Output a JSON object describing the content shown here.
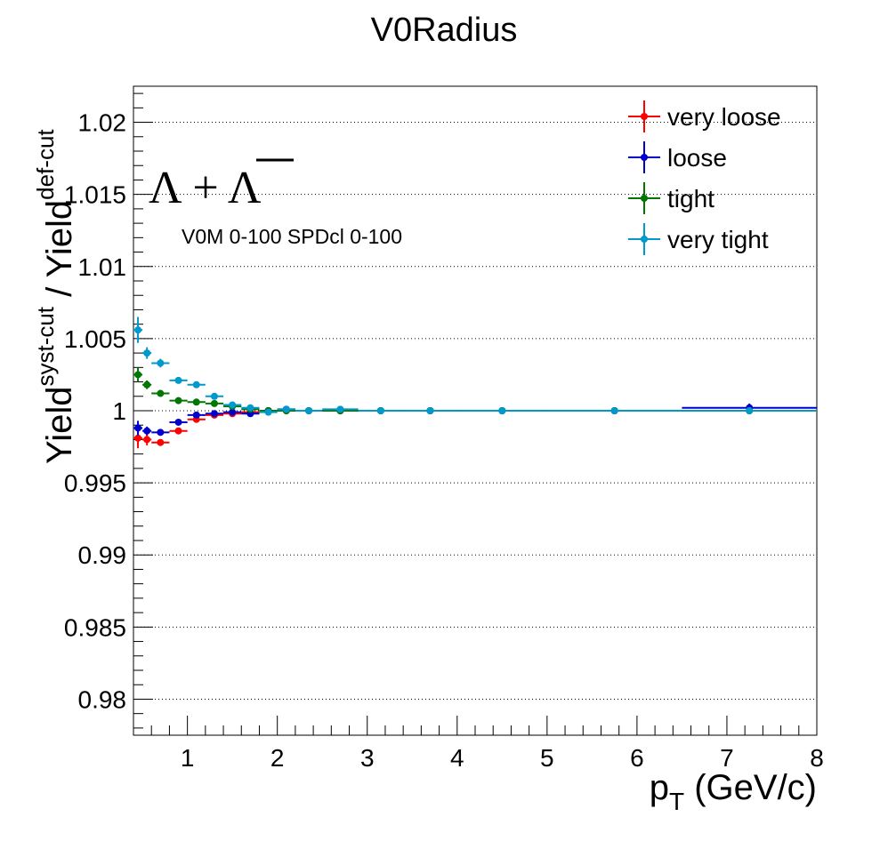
{
  "chart_data": {
    "type": "scatter",
    "title": "V0Radius",
    "xlabel": {
      "main": "p",
      "sub": "T",
      "unit": " (GeV/c)"
    },
    "ylabel": {
      "a": "Yield",
      "a_sup": "syst-cut",
      "sep": " / ",
      "b": "Yield",
      "b_sup": "def-cut"
    },
    "annotation_particle": {
      "part1": "Λ + ",
      "part2": "Λ"
    },
    "annotation_centrality": "V0M 0-100 SPDcl 0-100",
    "xlim": [
      0.4,
      8.0
    ],
    "ylim": [
      0.9775,
      1.0225
    ],
    "xticks": [
      1,
      2,
      3,
      4,
      5,
      6,
      7,
      8
    ],
    "xtick_labels": [
      "1",
      "2",
      "3",
      "4",
      "5",
      "6",
      "7",
      "8"
    ],
    "yticks": [
      0.98,
      0.985,
      0.99,
      0.995,
      1.0,
      1.005,
      1.01,
      1.015,
      1.02
    ],
    "ytick_labels": [
      "0.98",
      "0.985",
      "0.99",
      "0.995",
      "1",
      "1.005",
      "1.01",
      "1.015",
      "1.02"
    ],
    "grid": "horizontal dotted",
    "legend_position": "top-right",
    "bin_edges": [
      0.4,
      0.5,
      0.6,
      0.8,
      1.0,
      1.2,
      1.4,
      1.6,
      1.8,
      2.0,
      2.2,
      2.5,
      2.9,
      3.4,
      4.0,
      5.0,
      6.5,
      8.0
    ],
    "x": [
      0.45,
      0.55,
      0.7,
      0.9,
      1.1,
      1.3,
      1.5,
      1.7,
      1.9,
      2.1,
      2.35,
      2.7,
      3.15,
      3.7,
      4.5,
      5.75,
      7.25
    ],
    "series": [
      {
        "name": "very loose",
        "color": "#ff0000",
        "values": [
          0.9981,
          0.998,
          0.9978,
          0.9986,
          0.9994,
          0.9997,
          0.9998,
          0.9999,
          1.0,
          1.0,
          1.0,
          1.0,
          1.0,
          1.0,
          1.0,
          1.0,
          1.0
        ],
        "errors": [
          0.0007,
          0.0004,
          0.0002,
          0.0002,
          0.0001,
          0.0001,
          0.0001,
          0.0001,
          0.0001,
          0.0001,
          0.0001,
          0.0001,
          0.0001,
          0.0001,
          0.0001,
          0.0001,
          0.0001
        ]
      },
      {
        "name": "loose",
        "color": "#0000cc",
        "values": [
          0.9988,
          0.9986,
          0.9985,
          0.9992,
          0.9997,
          0.9998,
          0.9999,
          0.9998,
          1.0,
          1.0001,
          1.0,
          1.0,
          1.0,
          1.0,
          1.0,
          1.0,
          1.0002
        ],
        "errors": [
          0.0005,
          0.0003,
          0.0002,
          0.0002,
          0.0001,
          0.0001,
          0.0001,
          0.0001,
          0.0001,
          0.0001,
          0.0001,
          0.0001,
          0.0001,
          0.0001,
          0.0001,
          0.0001,
          0.0003
        ]
      },
      {
        "name": "tight",
        "color": "#007700",
        "values": [
          1.0025,
          1.0018,
          1.0012,
          1.0007,
          1.0006,
          1.0005,
          1.0003,
          1.0001,
          1.0,
          1.0,
          1.0,
          1.0,
          1.0,
          1.0,
          1.0,
          1.0,
          1.0
        ],
        "errors": [
          0.0005,
          0.0003,
          0.0002,
          0.0002,
          0.0001,
          0.0001,
          0.0001,
          0.0001,
          0.0001,
          0.0001,
          0.0001,
          0.0001,
          0.0001,
          0.0001,
          0.0001,
          0.0001,
          0.0001
        ]
      },
      {
        "name": "very tight",
        "color": "#0099cc",
        "values": [
          1.0056,
          1.004,
          1.0033,
          1.0021,
          1.0018,
          1.001,
          1.0004,
          1.0002,
          0.9999,
          1.0001,
          1.0,
          1.0001,
          1.0,
          1.0,
          1.0,
          1.0,
          1.0
        ],
        "errors": [
          0.0009,
          0.0004,
          0.0003,
          0.0002,
          0.0002,
          0.0001,
          0.0001,
          0.0001,
          0.0001,
          0.0001,
          0.0001,
          0.0001,
          0.0001,
          0.0001,
          0.0001,
          0.0001,
          0.0002
        ]
      }
    ]
  }
}
